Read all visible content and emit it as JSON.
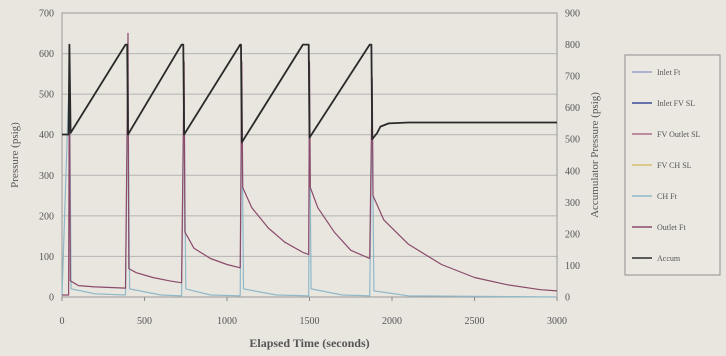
{
  "chart_data": {
    "type": "line",
    "title": "",
    "xlabel": "Elapsed Time (seconds)",
    "ylabel_left": "Pressure (psig)",
    "ylabel_right": "Accumulator Pressure (psig)",
    "xlim": [
      0,
      3000
    ],
    "ylim_left": [
      0,
      700
    ],
    "ylim_right": [
      0,
      900
    ],
    "x_ticks": [
      0,
      500,
      1000,
      1500,
      2000,
      2500,
      3000
    ],
    "y_ticks_left": [
      0,
      100,
      200,
      300,
      400,
      500,
      600,
      700
    ],
    "y_ticks_right": [
      0,
      100,
      200,
      300,
      400,
      500,
      600,
      700,
      800,
      900
    ],
    "grid": true,
    "legend_position": "right",
    "legend": [
      {
        "label": "Inlet Ft",
        "color": "#9aa0c8"
      },
      {
        "label": "Inlet FV SL",
        "color": "#3b4a9a"
      },
      {
        "label": "FV Outlet SL",
        "color": "#b06a8a"
      },
      {
        "label": "FV CH SL",
        "color": "#d8c070"
      },
      {
        "label": "CH Ft",
        "color": "#8fb8c8"
      },
      {
        "label": "Outlet Ft",
        "color": "#8a4a6a"
      },
      {
        "label": "Accum",
        "color": "#2a2a2a"
      }
    ],
    "series": [
      {
        "name": "Accum",
        "axis": "right",
        "color": "#2a2a2a",
        "points": [
          [
            0,
            515
          ],
          [
            40,
            515
          ],
          [
            45,
            800
          ],
          [
            52,
            520
          ],
          [
            385,
            800
          ],
          [
            395,
            800
          ],
          [
            400,
            515
          ],
          [
            725,
            800
          ],
          [
            735,
            800
          ],
          [
            740,
            515
          ],
          [
            1080,
            800
          ],
          [
            1085,
            800
          ],
          [
            1090,
            490
          ],
          [
            1460,
            800
          ],
          [
            1495,
            800
          ],
          [
            1500,
            505
          ],
          [
            1865,
            800
          ],
          [
            1875,
            800
          ],
          [
            1880,
            500
          ],
          [
            1910,
            520
          ],
          [
            1930,
            540
          ],
          [
            1980,
            550
          ],
          [
            2100,
            553
          ],
          [
            3000,
            553
          ]
        ]
      },
      {
        "name": "Outlet Ft",
        "axis": "left",
        "color": "#8a4a6a",
        "points": [
          [
            0,
            5
          ],
          [
            40,
            5
          ],
          [
            45,
            620
          ],
          [
            50,
            40
          ],
          [
            100,
            28
          ],
          [
            200,
            25
          ],
          [
            385,
            22
          ],
          [
            400,
            650
          ],
          [
            405,
            70
          ],
          [
            450,
            60
          ],
          [
            550,
            48
          ],
          [
            650,
            40
          ],
          [
            725,
            35
          ],
          [
            740,
            580
          ],
          [
            745,
            160
          ],
          [
            800,
            120
          ],
          [
            900,
            95
          ],
          [
            1000,
            80
          ],
          [
            1080,
            72
          ],
          [
            1090,
            580
          ],
          [
            1095,
            270
          ],
          [
            1150,
            220
          ],
          [
            1250,
            170
          ],
          [
            1350,
            135
          ],
          [
            1460,
            110
          ],
          [
            1495,
            105
          ],
          [
            1500,
            580
          ],
          [
            1505,
            270
          ],
          [
            1550,
            220
          ],
          [
            1650,
            160
          ],
          [
            1750,
            115
          ],
          [
            1865,
            95
          ],
          [
            1880,
            540
          ],
          [
            1885,
            250
          ],
          [
            1950,
            190
          ],
          [
            2100,
            130
          ],
          [
            2300,
            80
          ],
          [
            2500,
            48
          ],
          [
            2700,
            30
          ],
          [
            2900,
            18
          ],
          [
            3000,
            15
          ]
        ]
      },
      {
        "name": "CH Ft",
        "axis": "left",
        "color": "#8fb8c8",
        "points": [
          [
            0,
            2
          ],
          [
            45,
            560
          ],
          [
            55,
            20
          ],
          [
            200,
            8
          ],
          [
            385,
            5
          ],
          [
            400,
            520
          ],
          [
            410,
            20
          ],
          [
            600,
            5
          ],
          [
            725,
            3
          ],
          [
            740,
            500
          ],
          [
            750,
            20
          ],
          [
            900,
            5
          ],
          [
            1080,
            3
          ],
          [
            1090,
            500
          ],
          [
            1100,
            20
          ],
          [
            1300,
            5
          ],
          [
            1495,
            3
          ],
          [
            1500,
            500
          ],
          [
            1510,
            20
          ],
          [
            1700,
            5
          ],
          [
            1865,
            3
          ],
          [
            1880,
            470
          ],
          [
            1890,
            15
          ],
          [
            2100,
            3
          ],
          [
            3000,
            0
          ]
        ]
      }
    ]
  }
}
